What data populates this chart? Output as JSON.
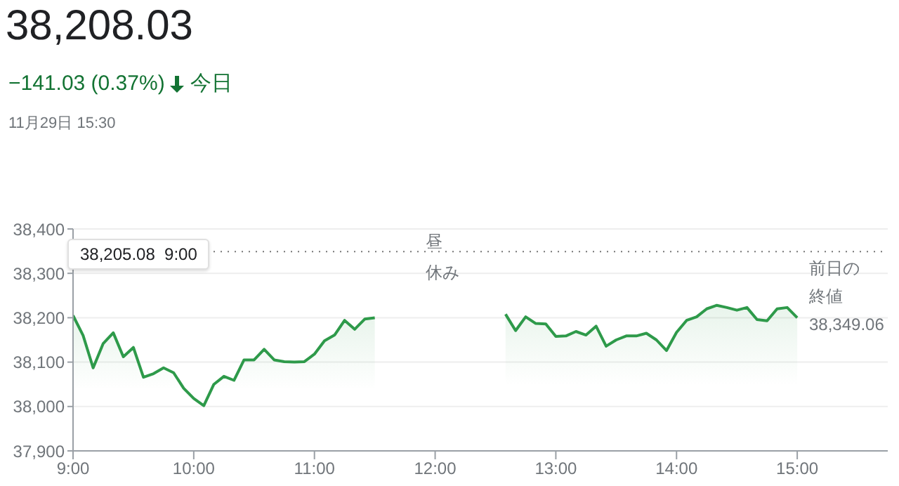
{
  "chart_data": {
    "type": "area",
    "title": "38,208.03",
    "subtitle": "−141.03 (0.37%)",
    "annotations": [
      "今日",
      "11月29日 15:30",
      "昼休み",
      "38,205.08  9:00"
    ],
    "series": [
      {
        "color": "#2e9a4a",
        "x": [
          9,
          9.0833,
          9.1667,
          9.25,
          9.3333,
          9.4167,
          9.5,
          9.5833,
          9.6667,
          9.75,
          9.8333,
          9.9167,
          10,
          10.0833,
          10.1667,
          10.25,
          10.3333,
          10.4167,
          10.5,
          10.5833,
          10.6667,
          10.75,
          10.8333,
          10.9167,
          11,
          11.0833,
          11.1667,
          11.25,
          11.3333,
          11.4167,
          11.5
        ],
        "values": [
          38205,
          38160,
          38087,
          38142,
          38166,
          38112,
          38133,
          38066,
          38074,
          38087,
          38076,
          38041,
          38018,
          38002,
          38050,
          38068,
          38059,
          38105,
          38105,
          38129,
          38105,
          38101,
          38100,
          38101,
          38118,
          38148,
          38161,
          38194,
          38174,
          38197,
          38200
        ]
      },
      {
        "color": "#2e9a4a",
        "x": [
          12.5833,
          12.6667,
          12.75,
          12.8333,
          12.9167,
          13,
          13.0833,
          13.1667,
          13.25,
          13.3333,
          13.4167,
          13.5,
          13.5833,
          13.6667,
          13.75,
          13.8333,
          13.9167,
          14,
          14.0833,
          14.1667,
          14.25,
          14.3333,
          14.4167,
          14.5,
          14.5833,
          14.6667,
          14.75,
          14.8333,
          14.9167,
          15
        ],
        "values": [
          38208,
          38171,
          38202,
          38187,
          38186,
          38158,
          38159,
          38169,
          38161,
          38181,
          38136,
          38150,
          38159,
          38159,
          38165,
          38150,
          38126,
          38167,
          38194,
          38202,
          38220,
          38228,
          38223,
          38217,
          38223,
          38196,
          38193,
          38220,
          38223,
          38200
        ]
      }
    ],
    "xlim": [
      9,
      15.75
    ],
    "xticks": [
      {
        "value": 9,
        "label": "9:00"
      },
      {
        "value": 10,
        "label": "10:00"
      },
      {
        "value": 11,
        "label": "11:00"
      },
      {
        "value": 12,
        "label": "12:00"
      },
      {
        "value": 13,
        "label": "13:00"
      },
      {
        "value": 14,
        "label": "14:00"
      },
      {
        "value": 15,
        "label": "15:00"
      }
    ],
    "ylim": [
      37900,
      38400
    ],
    "yticks": [
      {
        "value": 37900,
        "label": "37,900"
      },
      {
        "value": 38000,
        "label": "38,000"
      },
      {
        "value": 38100,
        "label": "38,100"
      },
      {
        "value": 38200,
        "label": "38,200"
      },
      {
        "value": 38300,
        "label": "38,300"
      },
      {
        "value": 38400,
        "label": "38,400"
      }
    ],
    "ref_lines": [
      {
        "axis": "y",
        "value": 38349.06,
        "label": "前日の終値38,349.06",
        "color": "#777777",
        "line_style": "dotted"
      }
    ],
    "grid": "y",
    "marker": "none",
    "line_style": "solid"
  }
}
